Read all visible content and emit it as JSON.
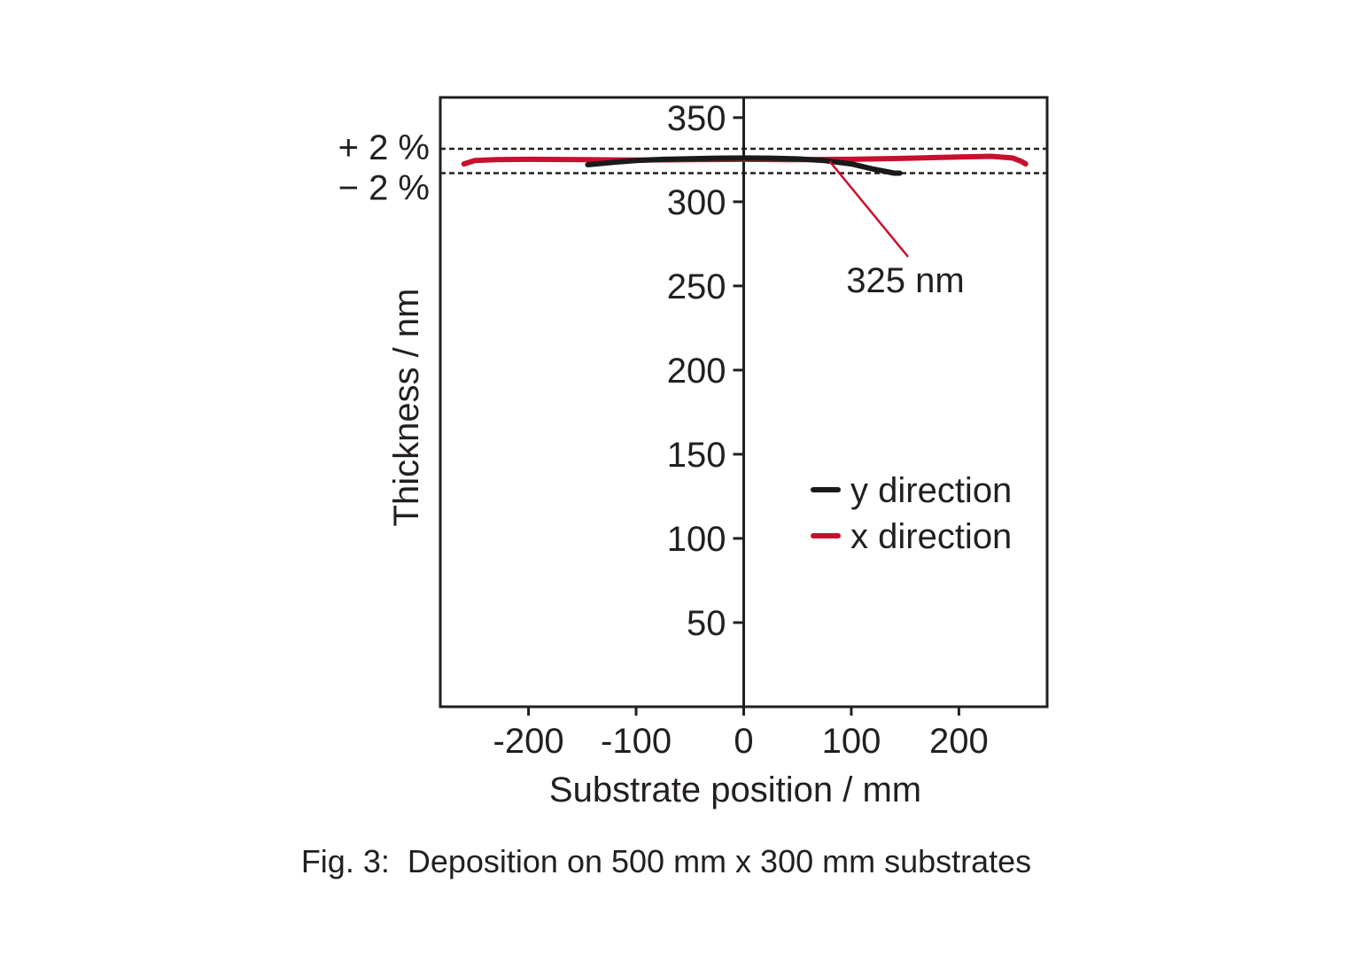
{
  "chart_data": {
    "type": "line",
    "caption": "Fig. 3:  Deposition on 500 mm x 300 mm substrates",
    "xlabel": "Substrate position / mm",
    "ylabel": "Thickness / nm",
    "xlim": [
      -282,
      282
    ],
    "ylim": [
      0,
      362
    ],
    "x_ticks": [
      "-200",
      "-100",
      "0",
      "100",
      "200"
    ],
    "x_tick_values": [
      -200,
      -100,
      0,
      100,
      200
    ],
    "y_ticks": [
      "350",
      "300",
      "250",
      "200",
      "150",
      "100",
      "50"
    ],
    "y_tick_values": [
      350,
      300,
      250,
      200,
      150,
      100,
      50
    ],
    "grid": false,
    "legend_position": "bottom-right",
    "reference_lines": [
      {
        "label": "+ 2 %",
        "value": 331.5
      },
      {
        "label": "− 2 %",
        "value": 317
      }
    ],
    "annotation": {
      "text": "325 nm",
      "x": 80,
      "y": 325
    },
    "series": [
      {
        "name": "y direction",
        "color": "#1a1a1a",
        "x": [
          -145,
          -120,
          -100,
          -75,
          -50,
          -25,
          0,
          25,
          50,
          75,
          100,
          120,
          140,
          145
        ],
        "y": [
          322,
          323.5,
          324.5,
          325.2,
          325.6,
          325.9,
          326,
          325.9,
          325.5,
          324.5,
          322.5,
          319.5,
          317,
          317
        ]
      },
      {
        "name": "x direction",
        "color": "#c8102e",
        "x": [
          -260,
          -250,
          -230,
          -200,
          -150,
          -100,
          -50,
          0,
          50,
          100,
          150,
          200,
          230,
          250,
          258,
          262
        ],
        "y": [
          322.5,
          324.5,
          325,
          325.2,
          325,
          324.8,
          325,
          325.2,
          325,
          325.2,
          325.8,
          326.6,
          327,
          326,
          324,
          322.5
        ]
      }
    ]
  }
}
